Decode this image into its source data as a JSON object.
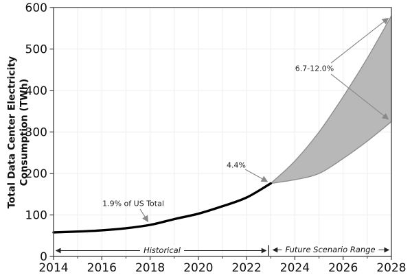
{
  "chart_data": {
    "type": "area",
    "title": "",
    "xlabel": "",
    "ylabel": "Total Data Center Electricity Consumption (TWh)",
    "ylabel_lines": [
      "Total Data Center Electricity",
      "Consumption (TWh)"
    ],
    "xlim": [
      2014,
      2028
    ],
    "ylim": [
      0,
      600
    ],
    "x_ticks": [
      2014,
      2016,
      2018,
      2020,
      2022,
      2024,
      2026,
      2028
    ],
    "x_minor_ticks": [
      2015,
      2017,
      2019,
      2021,
      2023,
      2025,
      2027
    ],
    "y_ticks": [
      0,
      100,
      200,
      300,
      400,
      500,
      600
    ],
    "grid": "on",
    "legend": "none",
    "series": [
      {
        "name": "Historical consumption",
        "type": "line",
        "color": "#000000",
        "x": [
          2014,
          2015,
          2016,
          2017,
          2018,
          2019,
          2020,
          2021,
          2022,
          2023
        ],
        "values": [
          58,
          60,
          63,
          68,
          76,
          90,
          103,
          121,
          142,
          176
        ]
      },
      {
        "name": "Future scenario range",
        "type": "band",
        "fill": "#b8b8b8",
        "edge": "#8e8e8e",
        "x": [
          2023,
          2024,
          2025,
          2026,
          2027,
          2028
        ],
        "lower": [
          176,
          185,
          200,
          236,
          278,
          325
        ],
        "upper": [
          176,
          230,
          300,
          385,
          478,
          580
        ]
      }
    ],
    "annotations": [
      {
        "id": "pct-2018",
        "text": "1.9% of US Total",
        "target": [
          2018,
          76
        ]
      },
      {
        "id": "pct-2023",
        "text": "4.4%",
        "target": [
          2023,
          176
        ]
      },
      {
        "id": "pct-2028",
        "text": "6.7-12.0%",
        "targets": [
          [
            2028,
            580
          ],
          [
            2028,
            325
          ]
        ]
      }
    ],
    "span_labels": [
      {
        "id": "historical",
        "text": "Historical",
        "from": 2014,
        "to": 2023
      },
      {
        "id": "future",
        "text": "Future Scenario Range",
        "from": 2023,
        "to": 2028
      }
    ]
  },
  "colors": {
    "line": "#000000",
    "band_fill": "#b8b8b8",
    "band_edge": "#8e8e8e",
    "grid": "#ececec",
    "spine": "#4d4d4d",
    "tick": "#333333",
    "tick_label": "#111111",
    "annotation_arrow": "#8a8a8a",
    "span_arrow": "#222222",
    "text": "#222222"
  }
}
